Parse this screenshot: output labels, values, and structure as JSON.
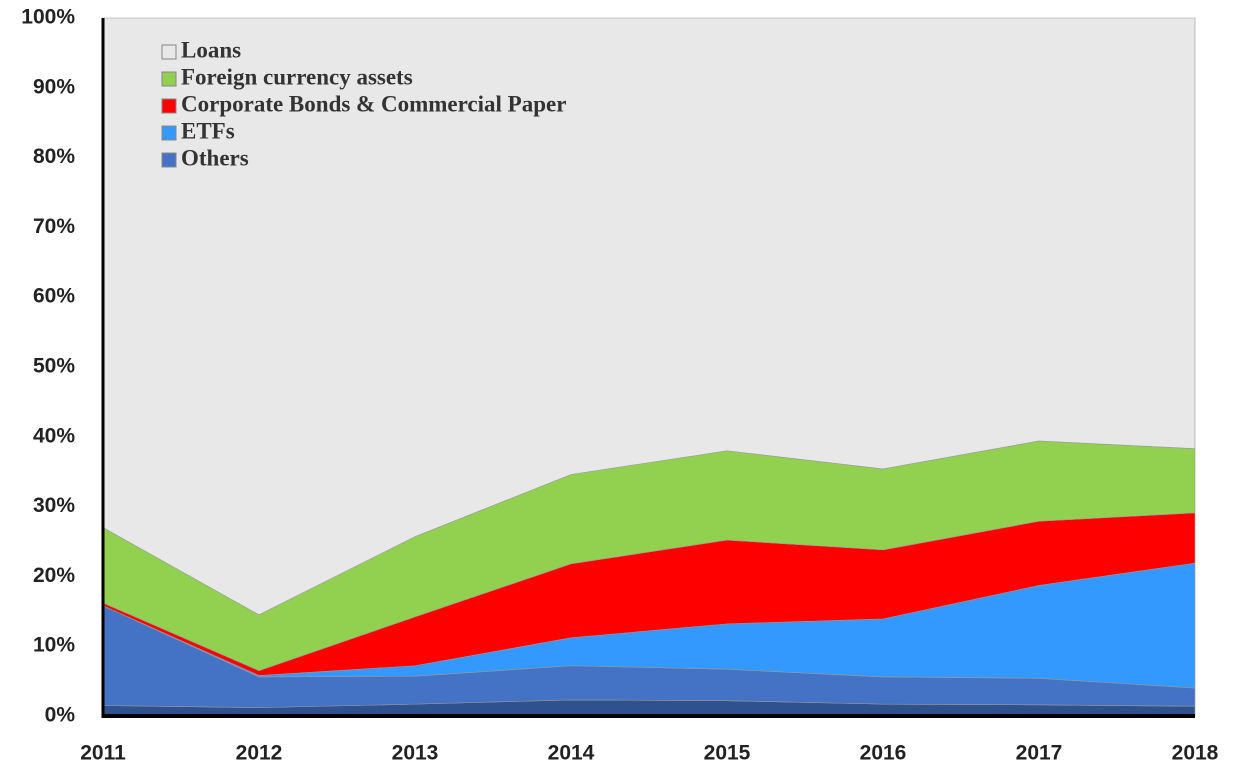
{
  "chart_data": {
    "type": "stacked_area_100",
    "categories": [
      "2011",
      "2012",
      "2013",
      "2014",
      "2015",
      "2016",
      "2017",
      "2018"
    ],
    "series": [
      {
        "color": "#2f528f",
        "values": [
          1.5,
          1.2,
          1.7,
          2.3,
          2.2,
          1.7,
          1.6,
          1.4
        ]
      },
      {
        "name": "Others",
        "color": "#4472c4",
        "values": [
          14.3,
          4.4,
          4.0,
          4.9,
          4.5,
          3.9,
          3.8,
          2.6
        ]
      },
      {
        "name": "ETFs",
        "color": "#3399ff",
        "values": [
          0,
          0.2,
          1.5,
          4.0,
          6.5,
          8.3,
          13.3,
          17.9
        ]
      },
      {
        "name": "Corporate Bonds & Commercial Paper",
        "color": "#ff0000",
        "values": [
          0.4,
          0.7,
          7.0,
          10.6,
          12.0,
          9.9,
          9.2,
          7.2
        ]
      },
      {
        "name": "Foreign currency assets",
        "color": "#92d050",
        "values": [
          10.8,
          8.0,
          11.5,
          12.8,
          12.8,
          11.6,
          11.5,
          9.2
        ]
      },
      {
        "name": "Loans",
        "color": "#e8e8e8",
        "values": [
          73.0,
          85.5,
          74.3,
          65.4,
          62.0,
          64.6,
          60.6,
          61.7
        ]
      }
    ],
    "ylim": [
      0,
      100
    ],
    "yticks": [
      {
        "value": 0,
        "label": "0%"
      },
      {
        "value": 10,
        "label": "10%"
      },
      {
        "value": 20,
        "label": "20%"
      },
      {
        "value": 30,
        "label": "30%"
      },
      {
        "value": 40,
        "label": "40%"
      },
      {
        "value": 50,
        "label": "50%"
      },
      {
        "value": 60,
        "label": "60%"
      },
      {
        "value": 70,
        "label": "70%"
      },
      {
        "value": 80,
        "label": "80%"
      },
      {
        "value": 90,
        "label": "90%"
      },
      {
        "value": 100,
        "label": "100%"
      }
    ],
    "grid": true,
    "legend": "top-left"
  }
}
